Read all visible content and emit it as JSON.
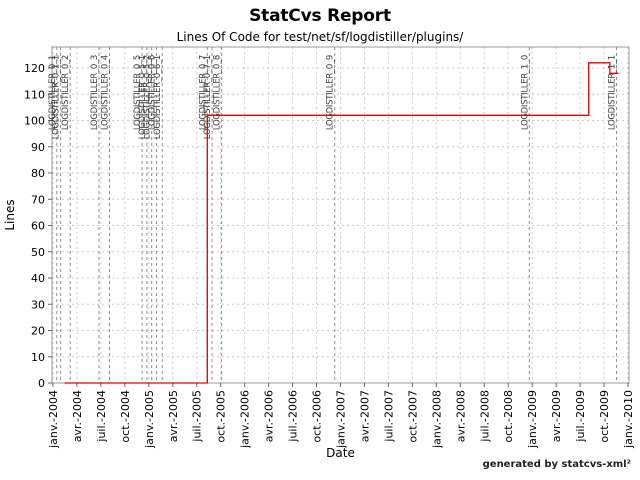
{
  "page": {
    "footer": "generated by statcvs-xml²"
  },
  "chart_data": {
    "type": "line",
    "step": true,
    "title": "StatCvs Report",
    "subtitle": "Lines Of Code for test/net/sf/logdistiller/plugins/",
    "xlabel": "Date",
    "ylabel": "Lines",
    "legend_position": "none",
    "grid": true,
    "xlim": [
      2003.99,
      2010.01
    ],
    "ylim": [
      0,
      128
    ],
    "yticks": [
      0,
      10,
      20,
      30,
      40,
      50,
      60,
      70,
      80,
      90,
      100,
      110,
      120
    ],
    "xticks": [
      {
        "value": 2004.0,
        "label": "janv.-2004"
      },
      {
        "value": 2004.25,
        "label": "avr.-2004"
      },
      {
        "value": 2004.5,
        "label": "juil.-2004"
      },
      {
        "value": 2004.75,
        "label": "oct.-2004"
      },
      {
        "value": 2005.0,
        "label": "janv.-2005"
      },
      {
        "value": 2005.25,
        "label": "avr.-2005"
      },
      {
        "value": 2005.5,
        "label": "juil.-2005"
      },
      {
        "value": 2005.75,
        "label": "oct.-2005"
      },
      {
        "value": 2006.0,
        "label": "janv.-2006"
      },
      {
        "value": 2006.25,
        "label": "avr.-2006"
      },
      {
        "value": 2006.5,
        "label": "juil.-2006"
      },
      {
        "value": 2006.75,
        "label": "oct.-2006"
      },
      {
        "value": 2007.0,
        "label": "janv.-2007"
      },
      {
        "value": 2007.25,
        "label": "avr.-2007"
      },
      {
        "value": 2007.5,
        "label": "juil.-2007"
      },
      {
        "value": 2007.75,
        "label": "oct.-2007"
      },
      {
        "value": 2008.0,
        "label": "janv.-2008"
      },
      {
        "value": 2008.25,
        "label": "avr.-2008"
      },
      {
        "value": 2008.5,
        "label": "juil.-2008"
      },
      {
        "value": 2008.75,
        "label": "oct.-2008"
      },
      {
        "value": 2009.0,
        "label": "janv.-2009"
      },
      {
        "value": 2009.25,
        "label": "avr.-2009"
      },
      {
        "value": 2009.5,
        "label": "juil.-2009"
      },
      {
        "value": 2009.75,
        "label": "oct.-2009"
      },
      {
        "value": 2010.0,
        "label": "janv.-2010"
      }
    ],
    "series": [
      {
        "name": "Lines Of Code",
        "color": "#e60000",
        "points": [
          [
            2004.12,
            0
          ],
          [
            2005.61,
            0
          ],
          [
            2005.61,
            102
          ],
          [
            2009.59,
            102
          ],
          [
            2009.59,
            122
          ],
          [
            2009.81,
            122
          ],
          [
            2009.81,
            118
          ],
          [
            2009.9,
            118
          ]
        ]
      }
    ],
    "tags": [
      {
        "label": "LOGDISTILLER_0_1",
        "x": 2004.04
      },
      {
        "label": "LOGDISTILLER_0_1_1",
        "x": 2004.08
      },
      {
        "label": "LOGDISTILLER_0_2",
        "x": 2004.18
      },
      {
        "label": "LOGDISTILLER_0_3",
        "x": 2004.48
      },
      {
        "label": "LOGDISTILLER_0_4",
        "x": 2004.59
      },
      {
        "label": "LOGDISTILLER_0_5",
        "x": 2004.93
      },
      {
        "label": "LOGDISTILLER_0_5_1",
        "x": 2004.98
      },
      {
        "label": "LOGDISTILLER_0_5_2",
        "x": 2005.03
      },
      {
        "label": "LOGDISTILLER_0_6",
        "x": 2005.08
      },
      {
        "label": "LOGDISTILLER_0_6_1",
        "x": 2005.14
      },
      {
        "label": "LOGDISTILLER_0_7",
        "x": 2005.61
      },
      {
        "label": "LOGDISTILLER_0_7_1",
        "x": 2005.66
      },
      {
        "label": "LOGDISTILLER_0_8",
        "x": 2005.76
      },
      {
        "label": "LOGDISTILLER_0_9",
        "x": 2006.94
      },
      {
        "label": "LOGDISTILLER_1_0",
        "x": 2008.97
      },
      {
        "label": "LOGDISTILLER_1_1",
        "x": 2009.88
      }
    ],
    "colors": {
      "line": "#e60000",
      "grid": "#cccccc",
      "tag_line": "#8f8f8f",
      "tag_label": "#3d3d3d",
      "axis": "#666666",
      "border": "#999999",
      "text": "#000000"
    }
  }
}
